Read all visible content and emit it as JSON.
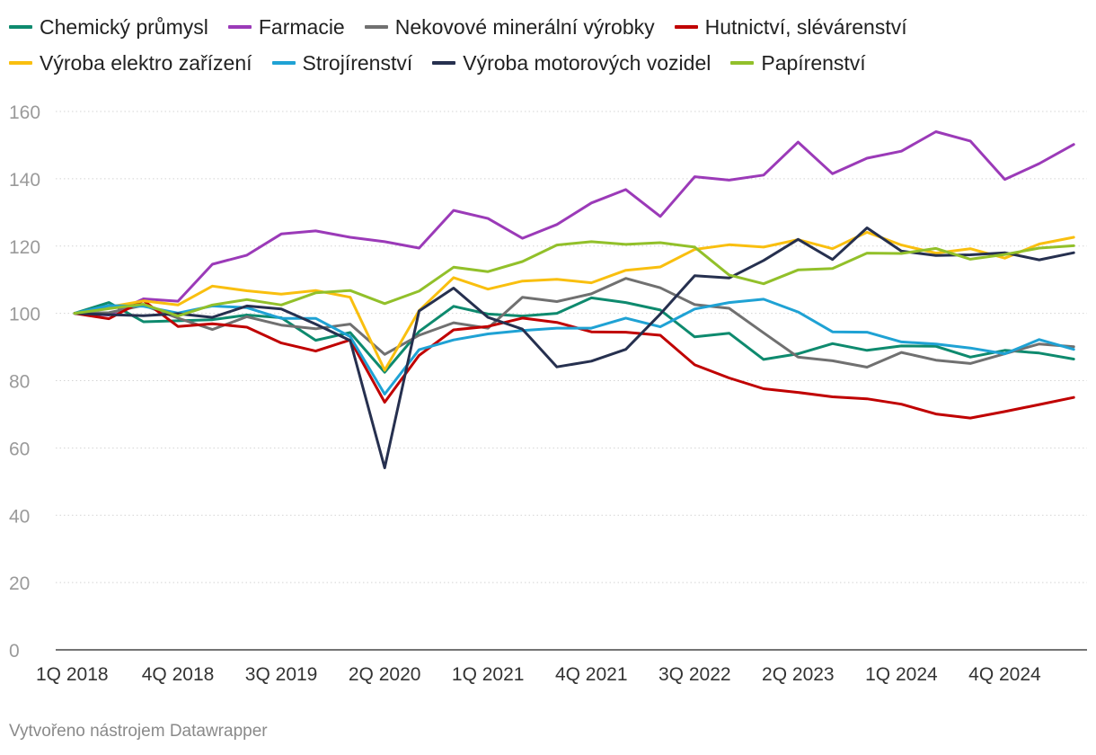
{
  "chart_data": {
    "type": "line",
    "title": "",
    "xlabel": "",
    "ylabel": "",
    "ylim": [
      0,
      160
    ],
    "yticks": [
      0,
      20,
      40,
      60,
      80,
      100,
      120,
      140,
      160
    ],
    "grid": "horizontal dotted",
    "legend": "top",
    "x": [
      "1Q 2018",
      "2Q 2018",
      "3Q 2018",
      "4Q 2018",
      "1Q 2019",
      "2Q 2019",
      "3Q 2019",
      "4Q 2019",
      "1Q 2020",
      "2Q 2020",
      "3Q 2020",
      "4Q 2020",
      "1Q 2021",
      "2Q 2021",
      "3Q 2021",
      "4Q 2021",
      "1Q 2022",
      "2Q 2022",
      "3Q 2022",
      "4Q 2022",
      "1Q 2023",
      "2Q 2023",
      "3Q 2023",
      "4Q 2023",
      "1Q 2024",
      "2Q 2024",
      "3Q 2024",
      "4Q 2024",
      "1Q 2025",
      "2Q 2025",
      "3Q 2025"
    ],
    "x_tick_labels": [
      "1Q 2018",
      "4Q 2018",
      "3Q 2019",
      "2Q 2020",
      "1Q 2021",
      "4Q 2021",
      "3Q 2022",
      "2Q 2023",
      "1Q 2024",
      "4Q 2024"
    ],
    "series": [
      {
        "name": "Chemický průmysl",
        "color": "#0e8a6e",
        "values": [
          100,
          103.2,
          97.5,
          97.8,
          98.1,
          99.5,
          98.7,
          92,
          94.3,
          82.5,
          94.6,
          102.1,
          99.8,
          99.2,
          100,
          104.6,
          103.2,
          101,
          93,
          94.1,
          86.3,
          88,
          91,
          89,
          90.3,
          90.2,
          87,
          89,
          88.2,
          86.4,
          null
        ]
      },
      {
        "name": "Farmacie",
        "color": "#9b3ab8",
        "values": [
          100,
          99.5,
          104.3,
          103.6,
          114.6,
          117.3,
          123.6,
          124.5,
          122.6,
          121.3,
          119.4,
          130.6,
          128.2,
          122.3,
          126.4,
          132.8,
          136.8,
          128.8,
          140.6,
          139.6,
          141.1,
          150.9,
          141.5,
          146.1,
          148.2,
          154,
          151.2,
          139.8,
          144.5,
          150.2,
          null
        ]
      },
      {
        "name": "Nekovové minerální výrobky",
        "color": "#707070",
        "values": [
          100,
          100.2,
          102.4,
          98.6,
          95.2,
          99,
          96.5,
          95.4,
          96.8,
          87.8,
          93.5,
          97.2,
          95.6,
          104.8,
          103.5,
          105.8,
          110.4,
          107.6,
          102.6,
          101.5,
          94.2,
          87,
          85.9,
          84,
          88.4,
          86.1,
          85.1,
          88,
          90.9,
          90.1,
          null
        ]
      },
      {
        "name": "Hutnictví, slévárenství",
        "color": "#c00000",
        "values": [
          100,
          98.4,
          103.8,
          96.1,
          96.9,
          95.9,
          91.2,
          88.8,
          92.1,
          73.6,
          87.5,
          95.1,
          96.1,
          98.6,
          97.3,
          94.5,
          94.4,
          93.5,
          84.7,
          80.8,
          77.6,
          76.5,
          75.2,
          74.6,
          73,
          70.1,
          68.9,
          70.8,
          72.9,
          75,
          null
        ]
      },
      {
        "name": "Výroba elektro zařízení",
        "color": "#f9bf0f",
        "values": [
          100,
          101.9,
          103.7,
          102.5,
          108.1,
          106.7,
          105.7,
          106.8,
          104.8,
          83.1,
          100.8,
          110.6,
          107.2,
          109.6,
          110.1,
          109.1,
          112.8,
          113.8,
          119,
          120.4,
          119.7,
          121.9,
          119.2,
          124.1,
          120.3,
          117.9,
          119.2,
          116.4,
          120.6,
          122.6,
          null
        ]
      },
      {
        "name": "Strojírenství",
        "color": "#1fa2d4",
        "values": [
          100,
          102.3,
          102.1,
          100.1,
          102.2,
          101.7,
          98.5,
          98.5,
          93.1,
          76,
          89.2,
          92.1,
          93.9,
          94.9,
          95.6,
          95.6,
          98.6,
          96,
          101.3,
          103.2,
          104.2,
          100.4,
          94.5,
          94.4,
          91.5,
          90.9,
          89.7,
          88,
          92.2,
          89.3,
          null
        ]
      },
      {
        "name": "Výroba motorových vozidel",
        "color": "#26304f",
        "values": [
          100,
          99.6,
          99.3,
          99.9,
          98.8,
          102.2,
          101.3,
          96.8,
          91.9,
          54.1,
          100.7,
          107.5,
          98.8,
          95.3,
          84.1,
          85.8,
          89.3,
          99.8,
          111.2,
          110.5,
          115.7,
          122,
          116,
          125.4,
          118.5,
          117.2,
          117.4,
          118,
          115.9,
          118,
          null
        ]
      },
      {
        "name": "Papírenství",
        "color": "#92c02a",
        "values": [
          100,
          101.4,
          102.7,
          99.2,
          102.5,
          104.1,
          102.5,
          106.1,
          106.8,
          102.9,
          106.6,
          113.7,
          112.4,
          115.4,
          120.3,
          121.3,
          120.5,
          121,
          119.7,
          111.4,
          108.8,
          112.9,
          113.3,
          117.9,
          117.8,
          119.3,
          116.1,
          117.5,
          119.4,
          120.1,
          null
        ]
      }
    ]
  },
  "footer": {
    "text": "Vytvořeno nástrojem Datawrapper"
  }
}
